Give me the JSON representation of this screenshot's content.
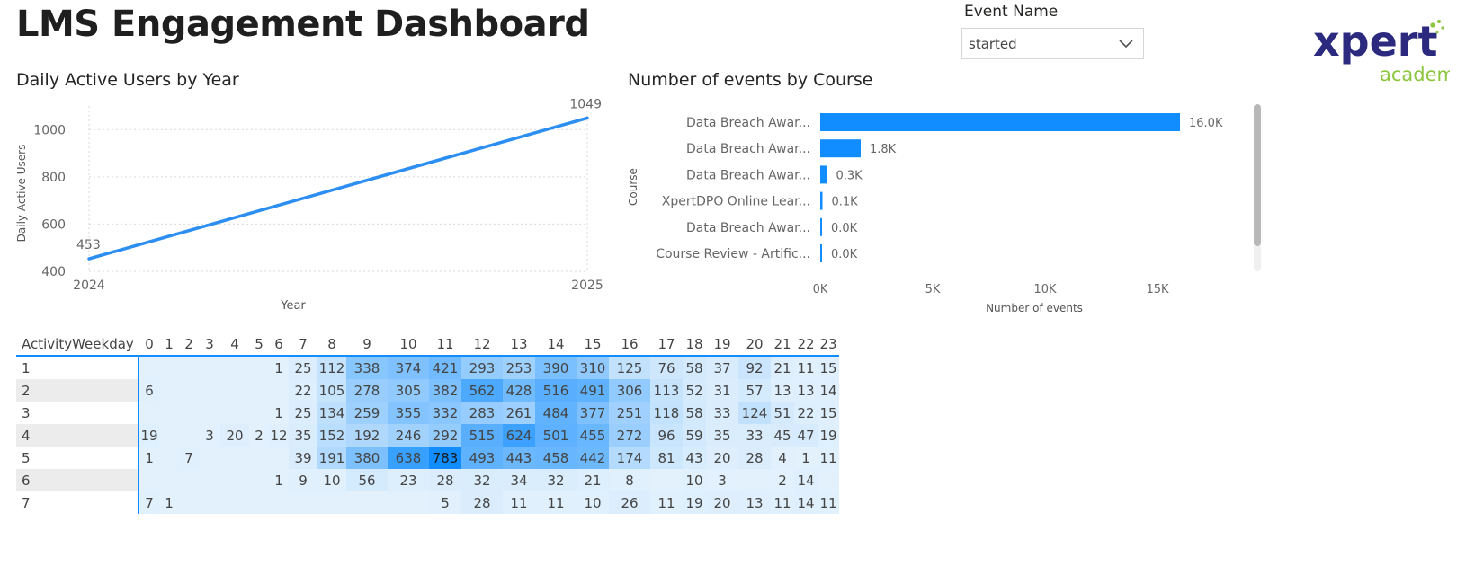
{
  "page": {
    "title": "LMS Engagement Dashboard"
  },
  "slicer": {
    "label": "Event Name",
    "selected": "started"
  },
  "logo": {
    "main": "xpert",
    "sub": "academy",
    "colors": {
      "main": "#2b2a7e",
      "sub": "#8cc63f"
    }
  },
  "line_visual": {
    "title": "Daily Active Users by Year"
  },
  "bar_visual": {
    "title": "Number of events by Course"
  },
  "chart_data": [
    {
      "type": "line",
      "title": "Daily Active Users by Year",
      "xlabel": "Year",
      "ylabel": "Daily Active Users",
      "x": [
        "2024",
        "2025"
      ],
      "series": [
        {
          "values": [
            453,
            1049
          ],
          "color": "#2b8ef0"
        }
      ],
      "data_labels": [
        "453",
        "1049"
      ],
      "yticks": [
        400,
        600,
        800,
        1000
      ],
      "ylim": [
        400,
        1100
      ],
      "grid": true
    },
    {
      "type": "bar",
      "orientation": "horizontal",
      "title": "Number of events by Course",
      "xlabel": "Number of events",
      "ylabel": "Course",
      "categories": [
        "Data Breach Awar...",
        "Data Breach Awar...",
        "Data Breach Awar...",
        "XpertDPO Online Lear...",
        "Data Breach Awar...",
        "Course Review - Artific..."
      ],
      "values": [
        16000,
        1800,
        300,
        100,
        40,
        20
      ],
      "data_labels": [
        "16.0K",
        "1.8K",
        "0.3K",
        "0.1K",
        "0.0K",
        "0.0K"
      ],
      "xticks": [
        "0K",
        "5K",
        "10K",
        "15K"
      ],
      "xtick_values": [
        0,
        5000,
        10000,
        15000
      ],
      "xlim": [
        0,
        18000
      ],
      "color": "#118dff"
    },
    {
      "type": "heatmap",
      "row_header": "ActivityWeekday",
      "columns": [
        "0",
        "1",
        "2",
        "3",
        "4",
        "5",
        "6",
        "7",
        "8",
        "9",
        "10",
        "11",
        "12",
        "13",
        "14",
        "15",
        "16",
        "17",
        "18",
        "19",
        "20",
        "21",
        "22",
        "23"
      ],
      "rows": [
        {
          "label": "1",
          "values": [
            null,
            null,
            null,
            null,
            null,
            null,
            1,
            25,
            112,
            338,
            374,
            421,
            293,
            253,
            390,
            310,
            125,
            76,
            58,
            37,
            92,
            21,
            11,
            15
          ]
        },
        {
          "label": "2",
          "values": [
            6,
            null,
            null,
            null,
            null,
            null,
            null,
            22,
            105,
            278,
            305,
            382,
            562,
            428,
            516,
            491,
            306,
            113,
            52,
            31,
            57,
            13,
            13,
            14
          ]
        },
        {
          "label": "3",
          "values": [
            null,
            null,
            null,
            null,
            null,
            null,
            1,
            25,
            134,
            259,
            355,
            332,
            283,
            261,
            484,
            377,
            251,
            118,
            58,
            33,
            124,
            51,
            22,
            15
          ]
        },
        {
          "label": "4",
          "values": [
            19,
            null,
            null,
            3,
            20,
            2,
            12,
            35,
            152,
            192,
            246,
            292,
            515,
            624,
            501,
            455,
            272,
            96,
            59,
            35,
            33,
            45,
            47,
            19
          ]
        },
        {
          "label": "5",
          "values": [
            1,
            null,
            7,
            null,
            null,
            null,
            null,
            39,
            191,
            380,
            638,
            783,
            493,
            443,
            458,
            442,
            174,
            81,
            43,
            20,
            28,
            4,
            1,
            11
          ]
        },
        {
          "label": "6",
          "values": [
            null,
            null,
            null,
            null,
            null,
            null,
            1,
            9,
            10,
            56,
            23,
            28,
            32,
            34,
            32,
            21,
            8,
            null,
            10,
            3,
            null,
            2,
            14,
            null
          ]
        },
        {
          "label": "7",
          "values": [
            7,
            1,
            null,
            null,
            null,
            null,
            null,
            null,
            null,
            null,
            null,
            5,
            28,
            11,
            11,
            10,
            26,
            11,
            19,
            20,
            13,
            11,
            14,
            11
          ]
        }
      ],
      "max_value": 783,
      "color_low": "#e3f1fd",
      "color_high": "#118dff"
    }
  ]
}
